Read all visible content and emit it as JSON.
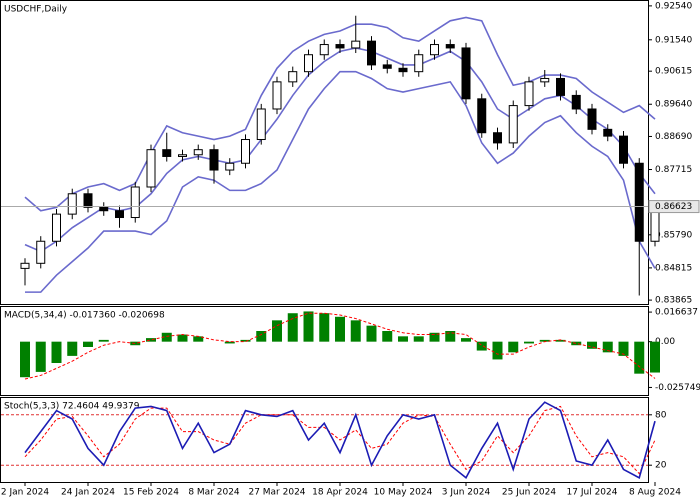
{
  "chart_data": [
    {
      "type": "candlestick",
      "title": "USDCHF,Daily",
      "open": [
        0.848,
        0.8495,
        0.856,
        0.864,
        0.87,
        0.866,
        0.865,
        0.863,
        0.872,
        0.883,
        0.881,
        0.8815,
        0.883,
        0.877,
        0.879,
        0.886,
        0.895,
        0.903,
        0.906,
        0.911,
        0.914,
        0.913,
        0.915,
        0.908,
        0.907,
        0.906,
        0.911,
        0.914,
        0.913,
        0.898,
        0.888,
        0.885,
        0.896,
        0.903,
        0.904,
        0.899,
        0.895,
        0.889,
        0.887,
        0.879,
        0.856
      ],
      "high": [
        0.851,
        0.8575,
        0.8655,
        0.8715,
        0.8715,
        0.8675,
        0.8665,
        0.8735,
        0.8845,
        0.888,
        0.883,
        0.8845,
        0.8845,
        0.8805,
        0.8875,
        0.8965,
        0.9045,
        0.9075,
        0.9125,
        0.9155,
        0.9155,
        0.9225,
        0.9165,
        0.9095,
        0.9085,
        0.9125,
        0.9155,
        0.9155,
        0.9145,
        0.8995,
        0.8895,
        0.8975,
        0.9045,
        0.9065,
        0.9055,
        0.9005,
        0.8965,
        0.8905,
        0.8885,
        0.8805,
        0.868
      ],
      "low": [
        0.843,
        0.848,
        0.8545,
        0.8625,
        0.8645,
        0.8635,
        0.86,
        0.8615,
        0.8705,
        0.8795,
        0.8795,
        0.88,
        0.873,
        0.8755,
        0.8775,
        0.8845,
        0.8935,
        0.9015,
        0.9045,
        0.9095,
        0.9115,
        0.9115,
        0.9065,
        0.9055,
        0.9045,
        0.9045,
        0.9095,
        0.9115,
        0.8965,
        0.8865,
        0.883,
        0.8835,
        0.8945,
        0.9015,
        0.8975,
        0.8935,
        0.8875,
        0.8855,
        0.8775,
        0.84,
        0.8545
      ],
      "close": [
        0.8495,
        0.856,
        0.864,
        0.87,
        0.866,
        0.865,
        0.863,
        0.872,
        0.883,
        0.881,
        0.8815,
        0.883,
        0.877,
        0.879,
        0.886,
        0.895,
        0.903,
        0.906,
        0.911,
        0.914,
        0.913,
        0.915,
        0.908,
        0.907,
        0.906,
        0.911,
        0.914,
        0.913,
        0.898,
        0.888,
        0.885,
        0.896,
        0.903,
        0.904,
        0.899,
        0.895,
        0.889,
        0.887,
        0.879,
        0.856,
        0.8662
      ],
      "candle_color": "#000000",
      "bands": {
        "color": "#6a6acd",
        "upper": [
          0.869,
          0.865,
          0.866,
          0.87,
          0.872,
          0.873,
          0.871,
          0.873,
          0.882,
          0.89,
          0.888,
          0.887,
          0.886,
          0.887,
          0.889,
          0.899,
          0.907,
          0.912,
          0.915,
          0.917,
          0.918,
          0.92,
          0.92,
          0.919,
          0.916,
          0.915,
          0.918,
          0.921,
          0.922,
          0.921,
          0.911,
          0.902,
          0.903,
          0.905,
          0.905,
          0.904,
          0.9,
          0.897,
          0.894,
          0.896,
          0.892
        ],
        "middle": [
          0.855,
          0.853,
          0.856,
          0.86,
          0.863,
          0.866,
          0.865,
          0.866,
          0.87,
          0.876,
          0.88,
          0.881,
          0.88,
          0.879,
          0.88,
          0.886,
          0.892,
          0.899,
          0.905,
          0.909,
          0.912,
          0.913,
          0.912,
          0.91,
          0.908,
          0.908,
          0.91,
          0.912,
          0.909,
          0.903,
          0.895,
          0.892,
          0.895,
          0.898,
          0.899,
          0.896,
          0.892,
          0.889,
          0.884,
          0.876,
          0.87
        ],
        "lower": [
          0.841,
          0.841,
          0.846,
          0.85,
          0.854,
          0.859,
          0.859,
          0.859,
          0.858,
          0.862,
          0.872,
          0.875,
          0.874,
          0.871,
          0.871,
          0.873,
          0.877,
          0.886,
          0.895,
          0.901,
          0.906,
          0.906,
          0.904,
          0.901,
          0.9,
          0.901,
          0.902,
          0.903,
          0.896,
          0.885,
          0.879,
          0.882,
          0.887,
          0.891,
          0.893,
          0.888,
          0.884,
          0.881,
          0.874,
          0.856,
          0.848
        ]
      },
      "last_price": {
        "value": 0.86623,
        "label": "0.86623"
      },
      "ylim": [
        0.8375,
        0.92684
      ],
      "yticks": [
        {
          "value": 0.9254,
          "label": "0.92540"
        },
        {
          "value": 0.9154,
          "label": "0.91540"
        },
        {
          "value": 0.90615,
          "label": "0.90615"
        },
        {
          "value": 0.8964,
          "label": "0.89640"
        },
        {
          "value": 0.8869,
          "label": "0.88690"
        },
        {
          "value": 0.87715,
          "label": "0.87715"
        },
        {
          "value": 0.8579,
          "label": "0.85790"
        },
        {
          "value": 0.84815,
          "label": "0.84815"
        },
        {
          "value": 0.83865,
          "label": "0.83865"
        }
      ]
    },
    {
      "type": "macd",
      "title": "MACD(5,34,4) -0.017360 -0.020698",
      "histogram": {
        "color": "#008000",
        "values": [
          -0.02,
          -0.017,
          -0.012,
          -0.008,
          -0.003,
          0.001,
          0.0,
          -0.002,
          0.002,
          0.005,
          0.004,
          0.003,
          0.0,
          -0.001,
          0.001,
          0.006,
          0.012,
          0.016,
          0.017,
          0.016,
          0.014,
          0.012,
          0.009,
          0.006,
          0.003,
          0.003,
          0.005,
          0.006,
          0.002,
          -0.005,
          -0.01,
          -0.006,
          -0.001,
          0.001,
          0.001,
          -0.002,
          -0.004,
          -0.006,
          -0.008,
          -0.018,
          -0.01736
        ]
      },
      "signal": {
        "color": "#ff0000",
        "values": [
          -0.021,
          -0.019,
          -0.015,
          -0.011,
          -0.006,
          -0.002,
          0.0,
          -0.001,
          0.001,
          0.003,
          0.004,
          0.003,
          0.001,
          0.0,
          0.0,
          0.004,
          0.009,
          0.013,
          0.016,
          0.016,
          0.015,
          0.013,
          0.01,
          0.007,
          0.005,
          0.004,
          0.004,
          0.005,
          0.004,
          -0.002,
          -0.007,
          -0.007,
          -0.003,
          0.0,
          0.001,
          -0.001,
          -0.003,
          -0.005,
          -0.007,
          -0.014,
          -0.020698
        ]
      },
      "ylim": [
        -0.03,
        0.0195
      ],
      "yticks": [
        0.016637,
        {
          "value": 0,
          "label": "0.00"
        },
        -0.025749
      ]
    },
    {
      "type": "stochastic",
      "title": "Stoch(5,3,3) 72.4604 49.9379",
      "categories": [
        "2 Jan 2024",
        null,
        null,
        null,
        "24 Jan 2024",
        null,
        null,
        null,
        "15 Feb 2024",
        null,
        null,
        null,
        "8 Mar 2024",
        null,
        null,
        null,
        "27 Mar 2024",
        null,
        null,
        null,
        "18 Apr 2024",
        null,
        null,
        null,
        "10 May 2024",
        null,
        null,
        null,
        "3 Jun 2024",
        null,
        null,
        null,
        "25 Jun 2024",
        null,
        null,
        null,
        "17 Jul 2024",
        null,
        null,
        null,
        "8 Aug 2024"
      ],
      "main": {
        "color": "#1c1cb4",
        "values": [
          35,
          60,
          85,
          75,
          40,
          20,
          60,
          88,
          90,
          85,
          40,
          70,
          35,
          45,
          85,
          80,
          78,
          85,
          50,
          70,
          35,
          80,
          20,
          55,
          80,
          75,
          80,
          20,
          5,
          40,
          70,
          15,
          75,
          95,
          85,
          25,
          20,
          50,
          15,
          5,
          72.4604
        ]
      },
      "signal": {
        "color": "#ff0000",
        "values": [
          30,
          50,
          75,
          78,
          55,
          30,
          45,
          75,
          88,
          88,
          60,
          60,
          50,
          45,
          70,
          80,
          80,
          80,
          65,
          65,
          50,
          62,
          40,
          45,
          70,
          80,
          78,
          45,
          15,
          25,
          55,
          35,
          55,
          85,
          90,
          55,
          30,
          35,
          30,
          10,
          49.9379
        ]
      },
      "ylim": [
        0,
        100
      ],
      "yticks": [
        80,
        20
      ]
    }
  ]
}
